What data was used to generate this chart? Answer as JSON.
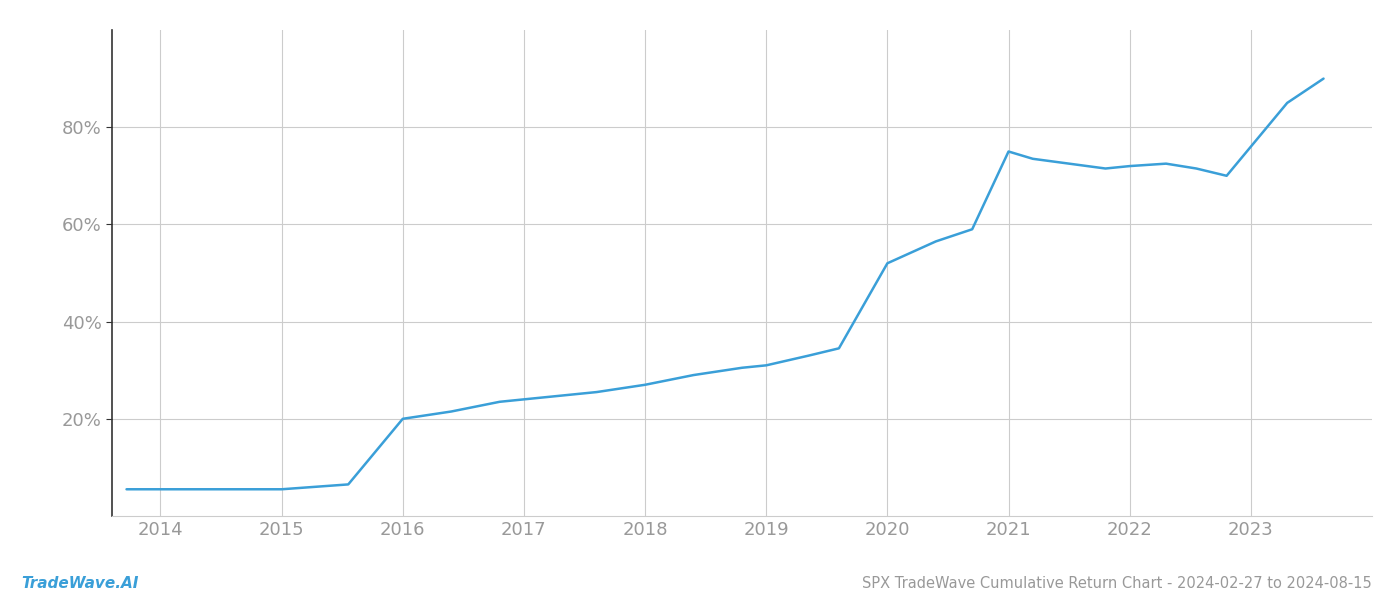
{
  "title": "SPX TradeWave Cumulative Return Chart - 2024-02-27 to 2024-08-15",
  "watermark": "TradeWave.AI",
  "line_color": "#3a9fd8",
  "background_color": "#ffffff",
  "grid_color": "#cccccc",
  "years": [
    2013.72,
    2014.0,
    2014.5,
    2015.0,
    2015.55,
    2016.0,
    2016.4,
    2016.8,
    2017.2,
    2017.6,
    2018.0,
    2018.4,
    2018.8,
    2019.0,
    2019.35,
    2019.6,
    2020.0,
    2020.4,
    2020.7,
    2021.0,
    2021.2,
    2021.5,
    2021.8,
    2022.0,
    2022.3,
    2022.55,
    2022.8,
    2023.0,
    2023.3,
    2023.6
  ],
  "values": [
    5.5,
    5.5,
    5.5,
    5.5,
    6.5,
    20.0,
    21.5,
    23.5,
    24.5,
    25.5,
    27.0,
    29.0,
    30.5,
    31.0,
    33.0,
    34.5,
    52.0,
    56.5,
    59.0,
    75.0,
    73.5,
    72.5,
    71.5,
    72.0,
    72.5,
    71.5,
    70.0,
    76.0,
    85.0,
    90.0
  ],
  "xlim": [
    2013.6,
    2024.0
  ],
  "ylim": [
    0,
    100
  ],
  "yticks": [
    20,
    40,
    60,
    80
  ],
  "xticks": [
    2014,
    2015,
    2016,
    2017,
    2018,
    2019,
    2020,
    2021,
    2022,
    2023
  ],
  "tick_color": "#999999",
  "left_spine_color": "#333333",
  "bottom_spine_color": "#cccccc",
  "title_fontsize": 10.5,
  "watermark_fontsize": 11,
  "tick_fontsize": 13
}
